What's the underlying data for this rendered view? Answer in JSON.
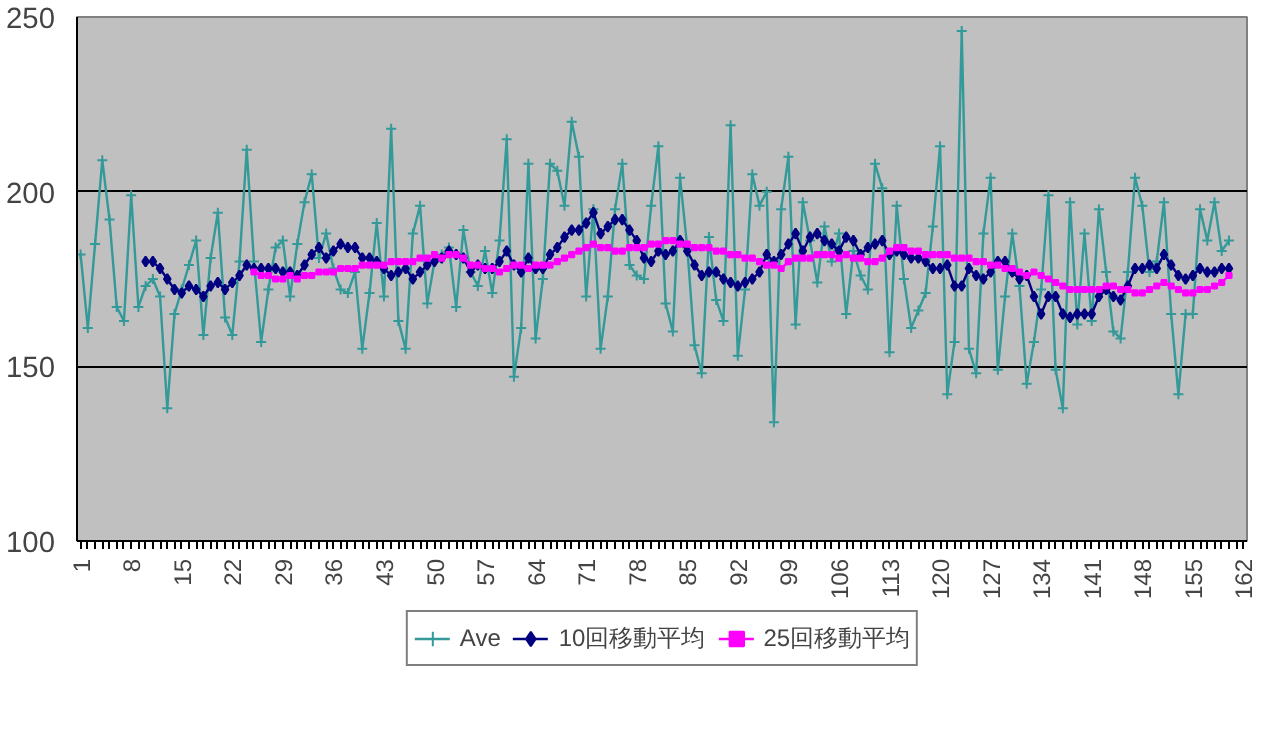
{
  "chart_data": {
    "type": "line",
    "categories": [
      "1",
      null,
      null,
      null,
      null,
      null,
      null,
      "8",
      null,
      null,
      null,
      null,
      null,
      null,
      "15",
      null,
      null,
      null,
      null,
      null,
      null,
      "22",
      null,
      null,
      null,
      null,
      null,
      null,
      "29",
      null,
      null,
      null,
      null,
      null,
      null,
      "36",
      null,
      null,
      null,
      null,
      null,
      null,
      "43",
      null,
      null,
      null,
      null,
      null,
      null,
      "50",
      null,
      null,
      null,
      null,
      null,
      null,
      "57",
      null,
      null,
      null,
      null,
      null,
      null,
      "64",
      null,
      null,
      null,
      null,
      null,
      null,
      "71",
      null,
      null,
      null,
      null,
      null,
      null,
      "78",
      null,
      null,
      null,
      null,
      null,
      null,
      "85",
      null,
      null,
      null,
      null,
      null,
      null,
      "92",
      null,
      null,
      null,
      null,
      null,
      null,
      "99",
      null,
      null,
      null,
      null,
      null,
      null,
      "106",
      null,
      null,
      null,
      null,
      null,
      null,
      "113",
      null,
      null,
      null,
      null,
      null,
      null,
      "120",
      null,
      null,
      null,
      null,
      null,
      null,
      "127",
      null,
      null,
      null,
      null,
      null,
      null,
      "134",
      null,
      null,
      null,
      null,
      null,
      null,
      "141",
      null,
      null,
      null,
      null,
      null,
      null,
      "148",
      null,
      null,
      null,
      null,
      null,
      null,
      "155",
      null,
      null,
      null,
      null,
      null,
      null,
      "162"
    ],
    "series": [
      {
        "name": "Ave",
        "color": "#339999",
        "marker": "cross",
        "values": [
          182,
          161,
          185,
          209,
          192,
          167,
          163,
          199,
          167,
          173,
          175,
          170,
          138,
          165,
          172,
          179,
          186,
          159,
          181,
          194,
          164,
          159,
          180,
          212,
          180,
          157,
          172,
          184,
          186,
          170,
          185,
          197,
          205,
          181,
          188,
          178,
          172,
          171,
          177,
          155,
          171,
          191,
          170,
          218,
          163,
          155,
          188,
          196,
          168,
          180,
          182,
          184,
          167,
          189,
          177,
          173,
          183,
          171,
          186,
          215,
          147,
          161,
          208,
          158,
          175,
          208,
          206,
          196,
          220,
          210,
          170,
          195,
          155,
          170,
          195,
          208,
          179,
          176,
          175,
          196,
          213,
          168,
          160,
          204,
          184,
          156,
          148,
          187,
          169,
          163,
          219,
          153,
          172,
          205,
          196,
          200,
          134,
          195,
          210,
          162,
          197,
          186,
          174,
          190,
          180,
          188,
          165,
          183,
          176,
          172,
          208,
          201,
          154,
          196,
          175,
          161,
          166,
          171,
          190,
          213,
          142,
          157,
          246,
          155,
          148,
          188,
          204,
          149,
          170,
          188,
          173,
          145,
          157,
          172,
          199,
          149,
          138,
          197,
          162,
          188,
          163,
          195,
          177,
          160,
          158,
          177,
          204,
          196,
          177,
          180,
          197,
          165,
          142,
          165,
          165,
          195,
          186,
          197,
          183,
          186,
          null,
          null
        ]
      },
      {
        "name": "10回移動平均",
        "color": "#000080",
        "marker": "diamond",
        "values": [
          null,
          null,
          null,
          null,
          null,
          null,
          null,
          null,
          null,
          180,
          180,
          178,
          175,
          172,
          171,
          173,
          172,
          170,
          173,
          174,
          172,
          174,
          176,
          179,
          178,
          178,
          178,
          178,
          177,
          177,
          176,
          179,
          182,
          184,
          181,
          183,
          185,
          184,
          184,
          181,
          181,
          180,
          178,
          176,
          177,
          178,
          175,
          177,
          179,
          180,
          181,
          183,
          182,
          181,
          177,
          179,
          178,
          178,
          180,
          183,
          179,
          177,
          181,
          178,
          178,
          182,
          184,
          187,
          189,
          189,
          191,
          194,
          188,
          190,
          192,
          192,
          189,
          186,
          181,
          180,
          183,
          182,
          183,
          186,
          183,
          179,
          176,
          177,
          177,
          175,
          174,
          173,
          174,
          175,
          177,
          182,
          180,
          182,
          185,
          188,
          183,
          187,
          188,
          186,
          185,
          183,
          187,
          186,
          182,
          184,
          185,
          186,
          182,
          183,
          182,
          181,
          181,
          180,
          178,
          178,
          179,
          173,
          173,
          178,
          176,
          175,
          177,
          180,
          180,
          177,
          175,
          176,
          170,
          165,
          170,
          170,
          165,
          164,
          165,
          165,
          165,
          170,
          172,
          170,
          169,
          173,
          178,
          178,
          179,
          178,
          182,
          179,
          176,
          175,
          176,
          178,
          177,
          177,
          178,
          178,
          null,
          null
        ]
      },
      {
        "name": "25回移動平均",
        "color": "#ff00ff",
        "marker": "square",
        "values": [
          null,
          null,
          null,
          null,
          null,
          null,
          null,
          null,
          null,
          null,
          null,
          null,
          null,
          null,
          null,
          null,
          null,
          null,
          null,
          null,
          null,
          null,
          null,
          null,
          177,
          176,
          176,
          175,
          175,
          176,
          175,
          176,
          176,
          177,
          177,
          177,
          178,
          178,
          178,
          179,
          179,
          179,
          179,
          180,
          180,
          180,
          180,
          181,
          181,
          182,
          181,
          182,
          182,
          181,
          179,
          179,
          178,
          178,
          177,
          178,
          179,
          179,
          178,
          179,
          179,
          179,
          180,
          181,
          182,
          183,
          184,
          185,
          184,
          184,
          183,
          183,
          184,
          184,
          184,
          185,
          185,
          186,
          186,
          185,
          185,
          184,
          184,
          184,
          183,
          183,
          182,
          182,
          181,
          181,
          180,
          179,
          179,
          178,
          180,
          181,
          181,
          181,
          182,
          182,
          182,
          181,
          182,
          181,
          181,
          180,
          180,
          181,
          183,
          184,
          184,
          183,
          183,
          182,
          182,
          182,
          182,
          181,
          181,
          181,
          180,
          180,
          179,
          179,
          178,
          178,
          177,
          176,
          177,
          176,
          175,
          174,
          173,
          172,
          172,
          172,
          172,
          172,
          173,
          173,
          172,
          172,
          171,
          171,
          172,
          173,
          174,
          173,
          172,
          171,
          171,
          172,
          172,
          173,
          174,
          176,
          null,
          null
        ]
      }
    ],
    "ylim": [
      100,
      250
    ],
    "yticks": [
      100,
      150,
      200,
      250
    ],
    "grid": "y",
    "legend": "bottom"
  }
}
